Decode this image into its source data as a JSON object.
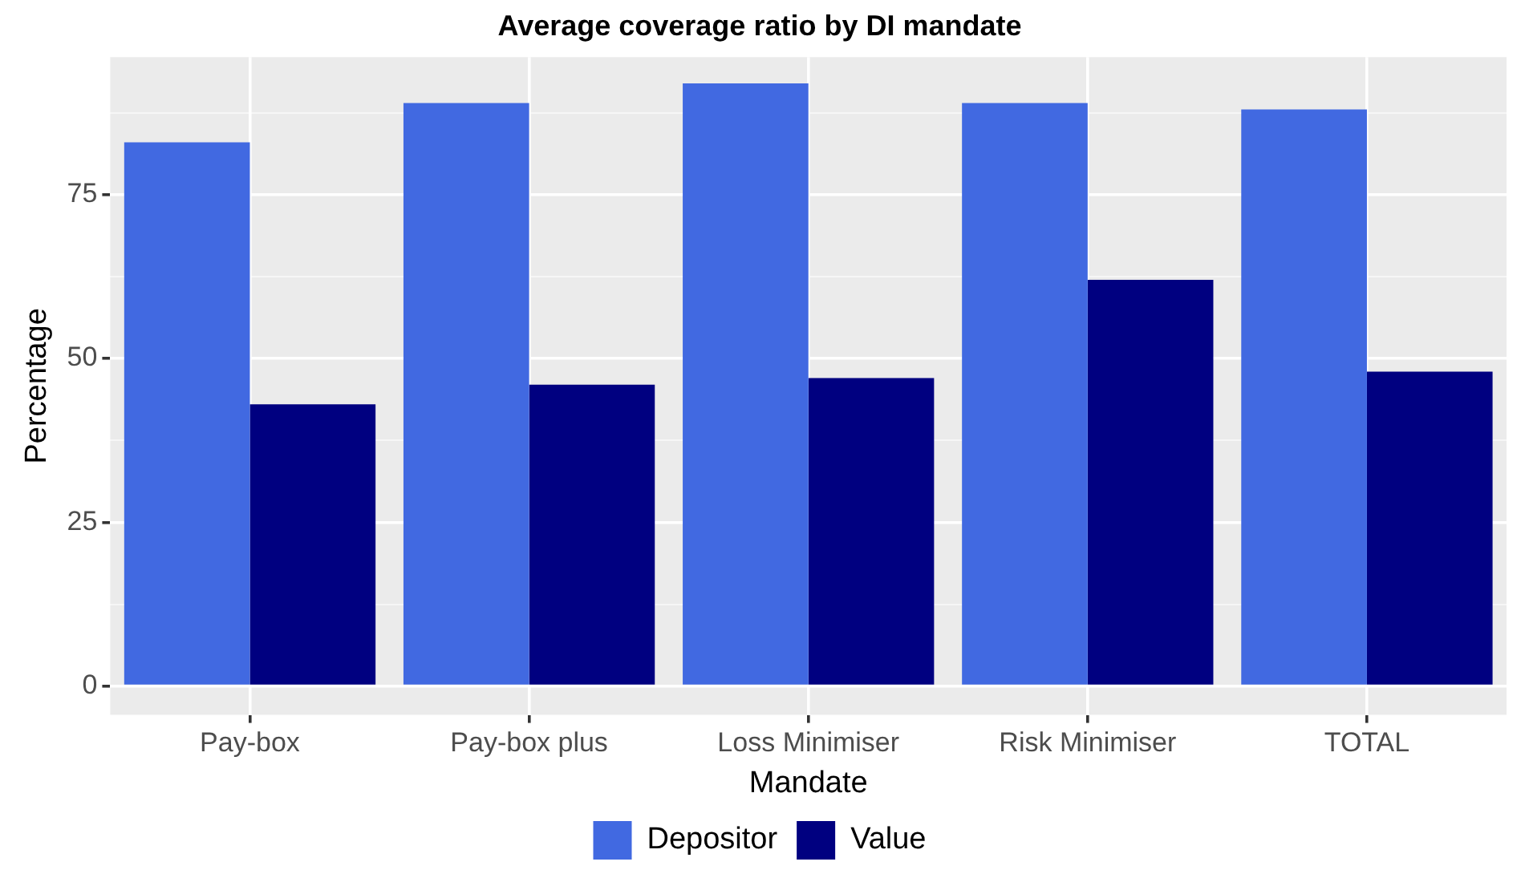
{
  "chart_data": {
    "type": "bar",
    "title": "Average coverage ratio by DI mandate",
    "xlabel": "Mandate",
    "ylabel": "Percentage",
    "categories": [
      "Pay-box",
      "Pay-box plus",
      "Loss Minimiser",
      "Risk Minimiser",
      "TOTAL"
    ],
    "series": [
      {
        "name": "Depositor",
        "color": "#4169e1",
        "values": [
          83,
          89,
          92,
          89,
          88
        ]
      },
      {
        "name": "Value",
        "color": "#000080",
        "values": [
          43,
          46,
          47,
          62,
          48
        ]
      }
    ],
    "ylim": [
      -4.4,
      96
    ],
    "yticks": [
      0,
      {
        "value": 12.5,
        "label": null
      },
      25,
      {
        "value": 37.5,
        "label": null
      },
      50,
      {
        "value": 62.5,
        "label": null
      },
      75,
      {
        "value": 87.5,
        "label": null
      }
    ],
    "grid": true,
    "legend": "bottom"
  }
}
